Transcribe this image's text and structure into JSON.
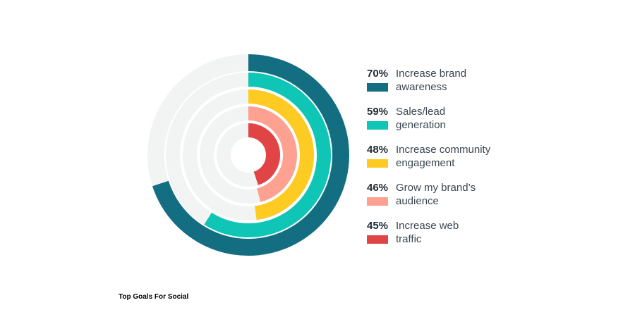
{
  "chart_data": {
    "type": "radial-bar",
    "title": "Top Goals For Social",
    "max": 100,
    "track_color": "#f2f3f3",
    "series": [
      {
        "pct_label": "70%",
        "label_line1": "Increase brand",
        "label_line2": "awareness",
        "value": 70,
        "color": "#146e82"
      },
      {
        "pct_label": "59%",
        "label_line1": "Sales/lead",
        "label_line2": "generation",
        "value": 59,
        "color": "#0fc6b6"
      },
      {
        "pct_label": "48%",
        "label_line1": "Increase community",
        "label_line2": "engagement",
        "value": 48,
        "color": "#fdcb22"
      },
      {
        "pct_label": "46%",
        "label_line1": "Grow my brand’s",
        "label_line2": "audience",
        "value": 46,
        "color": "#ffa191"
      },
      {
        "pct_label": "45%",
        "label_line1": "Increase web",
        "label_line2": "traffic",
        "value": 45,
        "color": "#e04445"
      }
    ]
  }
}
